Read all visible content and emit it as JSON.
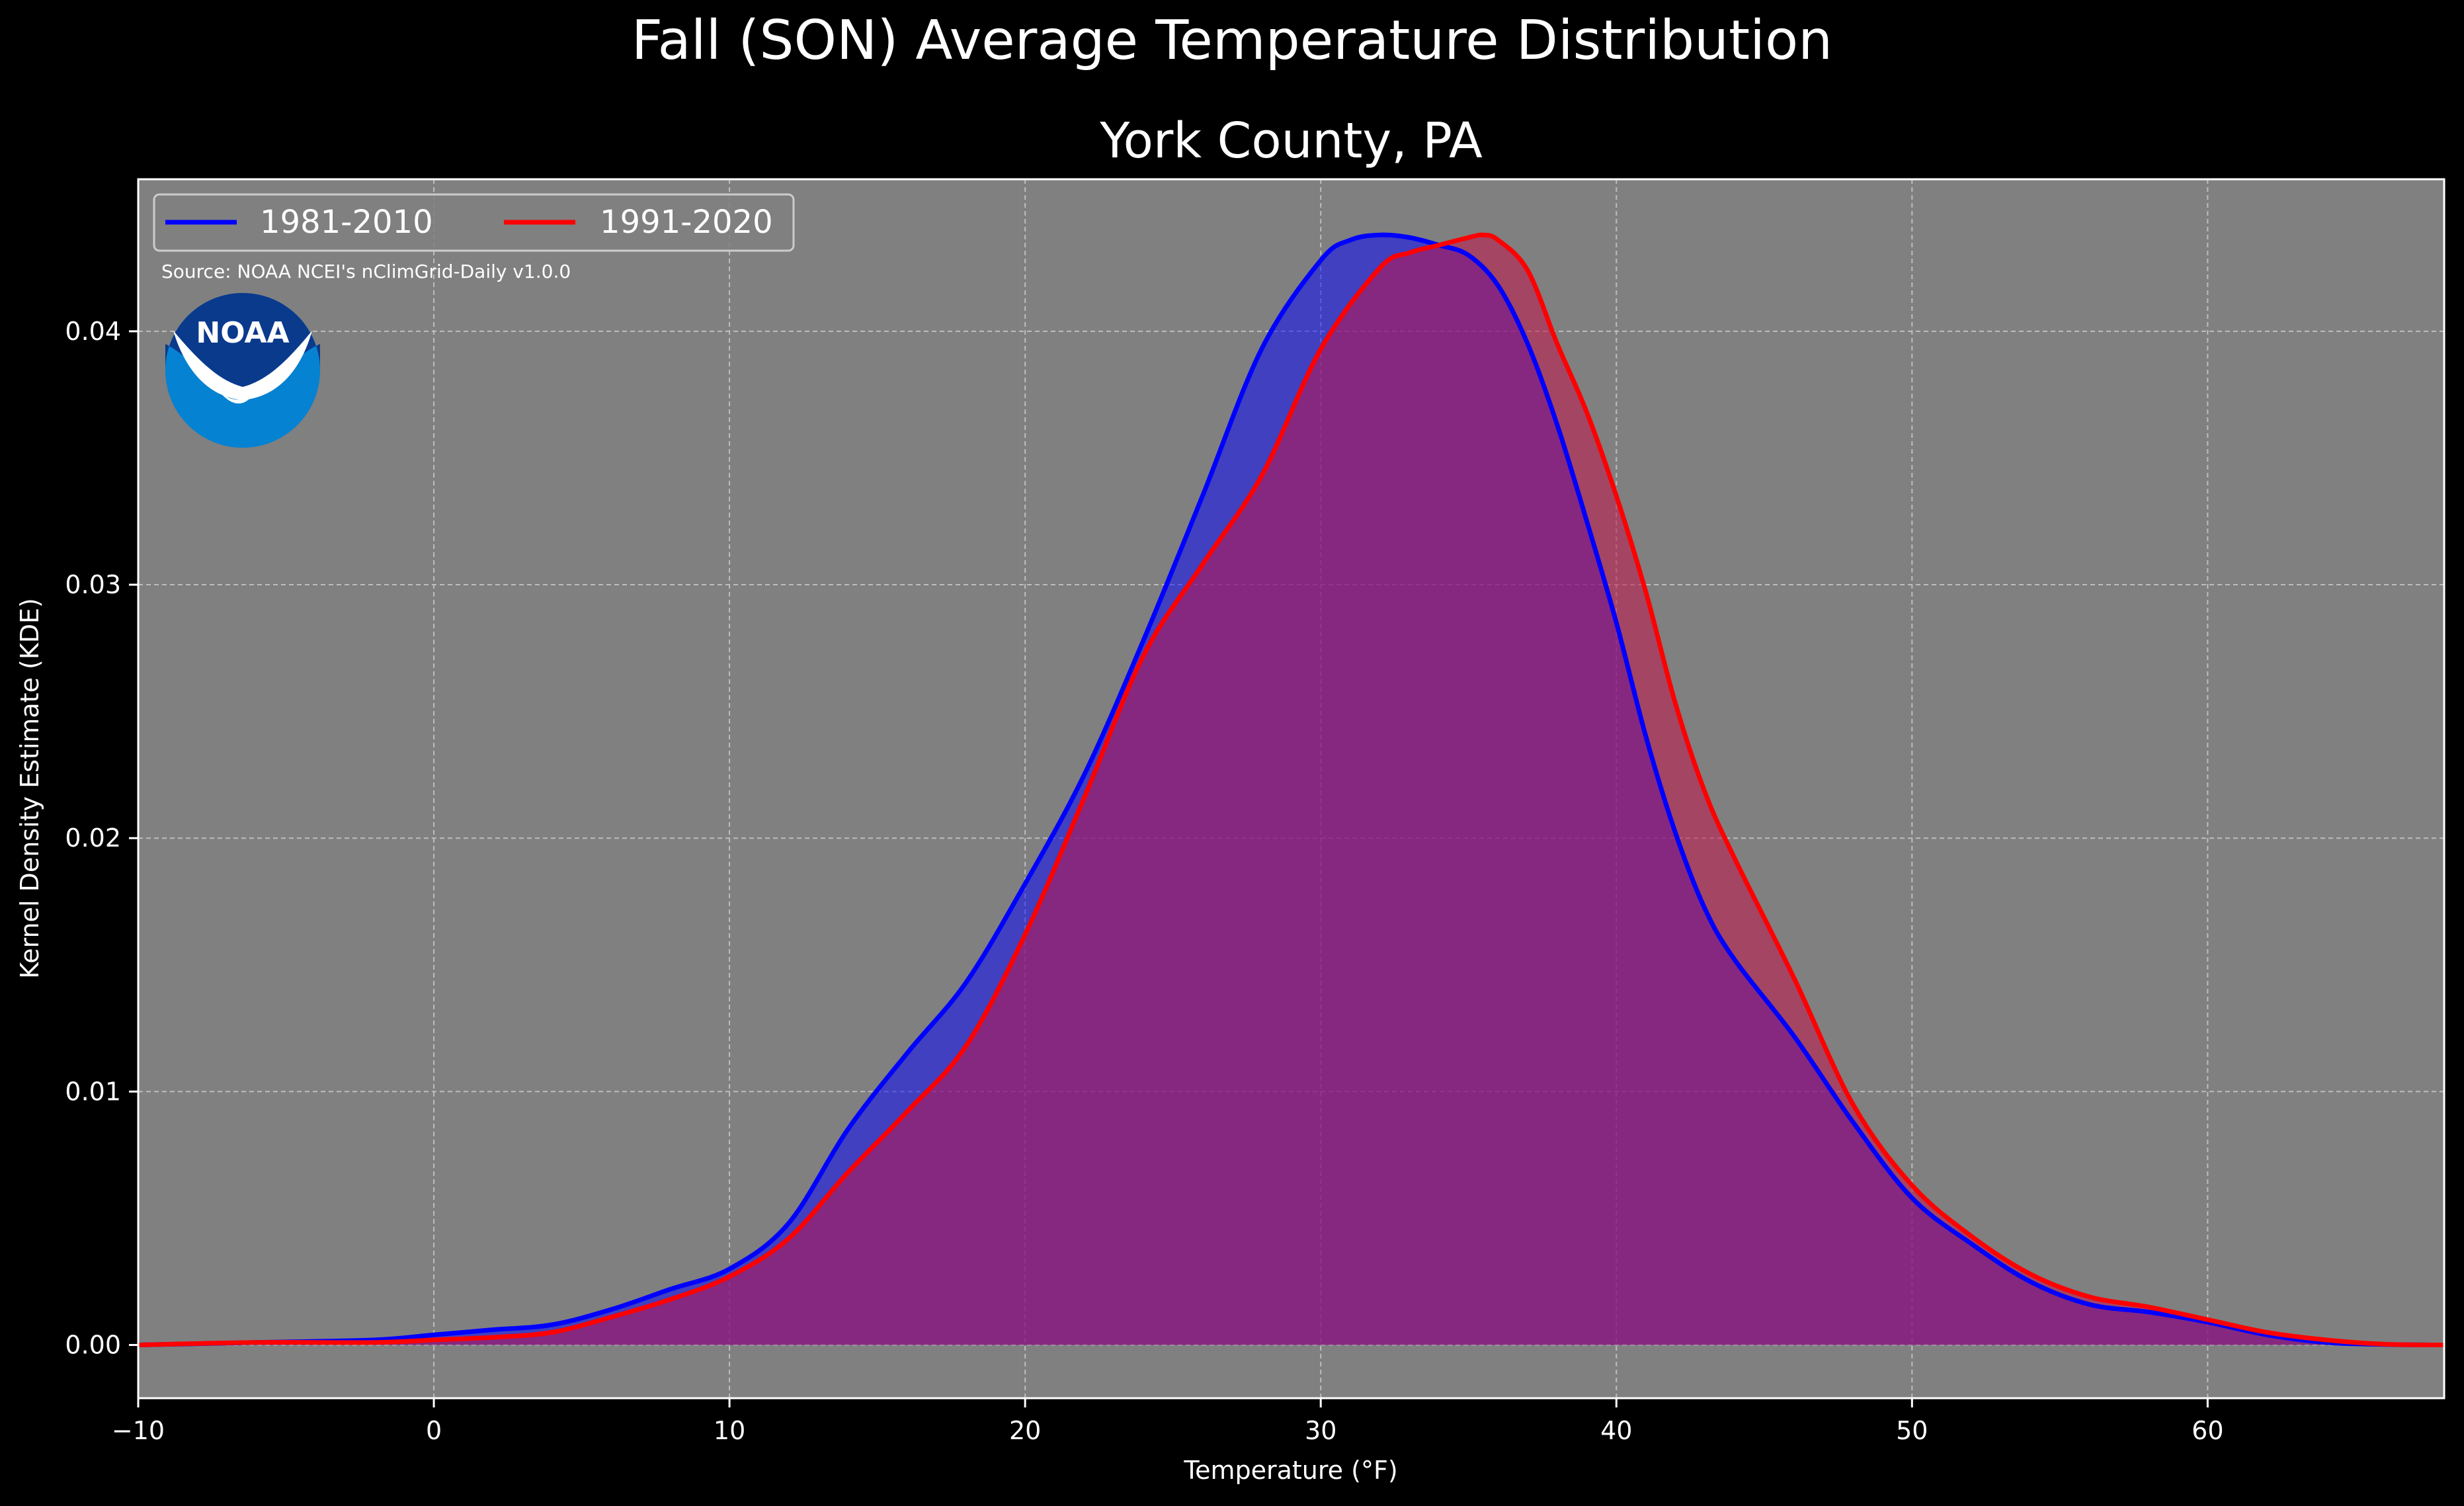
{
  "figure": {
    "suptitle": "Fall (SON) Average Temperature Distribution",
    "title": "York County, PA",
    "background": "#000000",
    "axes_facecolor": "#808080"
  },
  "source_note": "Source: NOAA NCEI's nClimGrid-Daily v1.0.0",
  "logo": {
    "text": "NOAA",
    "icon": "noaa-logo"
  },
  "chart_data": {
    "type": "area",
    "title": "York County, PA",
    "xlabel": "Temperature (°F)",
    "ylabel": "Kernel Density Estimate (KDE)",
    "xlim": [
      -10,
      68
    ],
    "ylim": [
      -0.0021,
      0.046
    ],
    "xticks": [
      -10,
      0,
      10,
      20,
      30,
      40,
      50,
      60
    ],
    "xtick_labels": [
      "−10",
      "0",
      "10",
      "20",
      "30",
      "40",
      "50",
      "60"
    ],
    "yticks": [
      0,
      0.01,
      0.02,
      0.03,
      0.04
    ],
    "ytick_labels": [
      "0.00",
      "0.01",
      "0.02",
      "0.03",
      "0.04"
    ],
    "grid": true,
    "legend_location": "upper-left",
    "series": [
      {
        "name": "1981-2010",
        "color": "#0000ff",
        "fill": "#0000ff",
        "x": [
          -10,
          -6,
          -2,
          0,
          2,
          4,
          6,
          8,
          10,
          12,
          14,
          16,
          18,
          20,
          22,
          24,
          26,
          28,
          30,
          31,
          32,
          33,
          34,
          35,
          36,
          37,
          38,
          39,
          40,
          41,
          42,
          43,
          44,
          46,
          48,
          50,
          52,
          54,
          56,
          58,
          60,
          62,
          64,
          66,
          68
        ],
        "y": [
          0,
          0.0001,
          0.0002,
          0.0004,
          0.0006,
          0.0008,
          0.0014,
          0.0022,
          0.003,
          0.0048,
          0.0085,
          0.0115,
          0.0143,
          0.0182,
          0.0225,
          0.0278,
          0.0335,
          0.0393,
          0.0428,
          0.0436,
          0.0438,
          0.0437,
          0.0434,
          0.043,
          0.0418,
          0.0395,
          0.0363,
          0.0325,
          0.0285,
          0.024,
          0.0202,
          0.0172,
          0.0152,
          0.0122,
          0.0088,
          0.0058,
          0.004,
          0.0025,
          0.0016,
          0.0013,
          0.0009,
          0.0004,
          0.0001,
          2e-05,
          0
        ],
        "alpha": 0.5
      },
      {
        "name": "1991-2020",
        "color": "#ff0000",
        "fill": "#c0144a",
        "x": [
          -10,
          -6,
          -2,
          0,
          2,
          4,
          6,
          8,
          10,
          12,
          14,
          16,
          18,
          20,
          22,
          24,
          26,
          28,
          30,
          32,
          33,
          34,
          35,
          35.5,
          36,
          37,
          38,
          39,
          40,
          41,
          42,
          43,
          44,
          46,
          48,
          50,
          52,
          54,
          56,
          58,
          60,
          62,
          64,
          66,
          68
        ],
        "y": [
          0,
          0.0001,
          0.0001,
          0.0002,
          0.0003,
          0.0005,
          0.0011,
          0.0018,
          0.0027,
          0.0042,
          0.0068,
          0.0092,
          0.0118,
          0.0162,
          0.0216,
          0.0272,
          0.0308,
          0.0343,
          0.0393,
          0.0425,
          0.0431,
          0.0434,
          0.0437,
          0.0438,
          0.0436,
          0.0424,
          0.0395,
          0.0368,
          0.0335,
          0.0297,
          0.0253,
          0.0218,
          0.0192,
          0.0145,
          0.0095,
          0.0063,
          0.0043,
          0.0028,
          0.0019,
          0.0015,
          0.001,
          0.0005,
          0.0002,
          3e-05,
          0
        ],
        "alpha": 0.55
      }
    ]
  }
}
